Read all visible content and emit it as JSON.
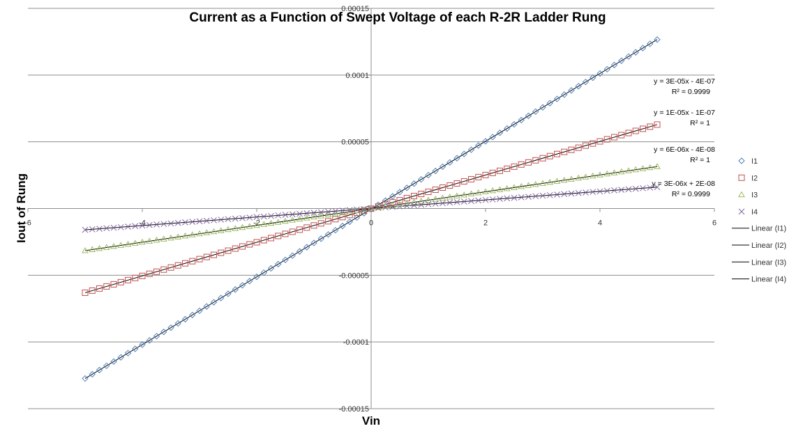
{
  "chart_data": {
    "type": "scatter",
    "title": "Current as a Function of Swept Voltage of each R-2R Ladder Rung",
    "xlabel": "Vin",
    "ylabel": "Iout of Rung",
    "xlim": [
      -6,
      6
    ],
    "ylim": [
      -0.00015,
      0.00015
    ],
    "x_ticks": [
      "-6",
      "-4",
      "-2",
      "0",
      "2",
      "4",
      "6"
    ],
    "y_ticks": [
      "0.00015",
      "0.0001",
      "0.00005",
      "0",
      "-0.00005",
      "-0.0001",
      "-0.00015"
    ],
    "grid": "horizontal",
    "legend_position": "right",
    "x_range_data": [
      -5,
      5
    ],
    "n_points": 81,
    "series": [
      {
        "name": "I1",
        "marker": "diamond",
        "color": "#4f81bd",
        "slope": 2.54e-05,
        "intercept": -4e-07
      },
      {
        "name": "I2",
        "marker": "square",
        "color": "#c0504d",
        "slope": 1.26e-05,
        "intercept": -1e-07
      },
      {
        "name": "I3",
        "marker": "triangle",
        "color": "#9bbb59",
        "slope": 6.3e-06,
        "intercept": -4e-08
      },
      {
        "name": "I4",
        "marker": "x",
        "color": "#8064a2",
        "slope": 3.2e-06,
        "intercept": 2e-08
      }
    ],
    "trendlines": [
      {
        "name": "Linear (I1)",
        "equation": "y = 3E-05x - 4E-07",
        "r2": "R² = 0.9999"
      },
      {
        "name": "Linear (I2)",
        "equation": "y = 1E-05x - 1E-07",
        "r2": "R² = 1"
      },
      {
        "name": "Linear (I3)",
        "equation": "y = 6E-06x - 4E-08",
        "r2": "R² = 1"
      },
      {
        "name": "Linear (I4)",
        "equation": "y = 3E-06x + 2E-08",
        "r2": "R² = 0.9999"
      }
    ]
  }
}
